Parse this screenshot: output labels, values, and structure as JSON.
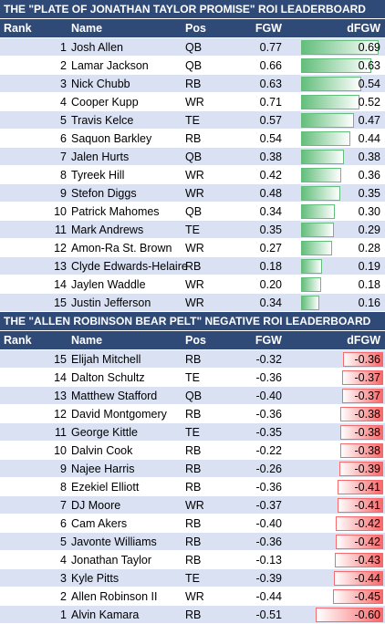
{
  "tables": [
    {
      "title": "THE \"PLATE OF JONATHAN TAYLOR PROMISE\" ROI LEADERBOARD",
      "headers": {
        "rank": "Rank",
        "name": "Name",
        "pos": "Pos",
        "fgw": "FGW",
        "dfgw": "dFGW"
      },
      "bar_color": "#63BE7B",
      "rows": [
        {
          "rank": "1",
          "name": "Josh Allen",
          "pos": "QB",
          "fgw": "0.77",
          "dfgw": "0.69",
          "dfgw_value": 0.69
        },
        {
          "rank": "2",
          "name": "Lamar Jackson",
          "pos": "QB",
          "fgw": "0.66",
          "dfgw": "0.63",
          "dfgw_value": 0.63
        },
        {
          "rank": "3",
          "name": "Nick Chubb",
          "pos": "RB",
          "fgw": "0.63",
          "dfgw": "0.54",
          "dfgw_value": 0.54
        },
        {
          "rank": "4",
          "name": "Cooper Kupp",
          "pos": "WR",
          "fgw": "0.71",
          "dfgw": "0.52",
          "dfgw_value": 0.52
        },
        {
          "rank": "5",
          "name": "Travis Kelce",
          "pos": "TE",
          "fgw": "0.57",
          "dfgw": "0.47",
          "dfgw_value": 0.47
        },
        {
          "rank": "6",
          "name": "Saquon Barkley",
          "pos": "RB",
          "fgw": "0.54",
          "dfgw": "0.44",
          "dfgw_value": 0.44
        },
        {
          "rank": "7",
          "name": "Jalen Hurts",
          "pos": "QB",
          "fgw": "0.38",
          "dfgw": "0.38",
          "dfgw_value": 0.38
        },
        {
          "rank": "8",
          "name": "Tyreek Hill",
          "pos": "WR",
          "fgw": "0.42",
          "dfgw": "0.36",
          "dfgw_value": 0.36
        },
        {
          "rank": "9",
          "name": "Stefon Diggs",
          "pos": "WR",
          "fgw": "0.48",
          "dfgw": "0.35",
          "dfgw_value": 0.35
        },
        {
          "rank": "10",
          "name": "Patrick Mahomes",
          "pos": "QB",
          "fgw": "0.34",
          "dfgw": "0.30",
          "dfgw_value": 0.3
        },
        {
          "rank": "11",
          "name": "Mark Andrews",
          "pos": "TE",
          "fgw": "0.35",
          "dfgw": "0.29",
          "dfgw_value": 0.29
        },
        {
          "rank": "12",
          "name": "Amon-Ra St. Brown",
          "pos": "WR",
          "fgw": "0.27",
          "dfgw": "0.28",
          "dfgw_value": 0.28
        },
        {
          "rank": "13",
          "name": "Clyde Edwards-Helaire",
          "pos": "RB",
          "fgw": "0.18",
          "dfgw": "0.19",
          "dfgw_value": 0.19
        },
        {
          "rank": "14",
          "name": "Jaylen Waddle",
          "pos": "WR",
          "fgw": "0.20",
          "dfgw": "0.18",
          "dfgw_value": 0.18
        },
        {
          "rank": "15",
          "name": "Justin Jefferson",
          "pos": "WR",
          "fgw": "0.34",
          "dfgw": "0.16",
          "dfgw_value": 0.16
        }
      ]
    },
    {
      "title": "THE \"ALLEN ROBINSON BEAR PELT\" NEGATIVE ROI LEADERBOARD",
      "headers": {
        "rank": "Rank",
        "name": "Name",
        "pos": "Pos",
        "fgw": "FGW",
        "dfgw": "dFGW"
      },
      "bar_color": "#F8696B",
      "rows": [
        {
          "rank": "15",
          "name": "Elijah Mitchell",
          "pos": "RB",
          "fgw": "-0.32",
          "dfgw": "-0.36",
          "dfgw_value": -0.36
        },
        {
          "rank": "14",
          "name": "Dalton Schultz",
          "pos": "TE",
          "fgw": "-0.36",
          "dfgw": "-0.37",
          "dfgw_value": -0.37
        },
        {
          "rank": "13",
          "name": "Matthew Stafford",
          "pos": "QB",
          "fgw": "-0.40",
          "dfgw": "-0.37",
          "dfgw_value": -0.37
        },
        {
          "rank": "12",
          "name": "David Montgomery",
          "pos": "RB",
          "fgw": "-0.36",
          "dfgw": "-0.38",
          "dfgw_value": -0.38
        },
        {
          "rank": "11",
          "name": "George Kittle",
          "pos": "TE",
          "fgw": "-0.35",
          "dfgw": "-0.38",
          "dfgw_value": -0.38
        },
        {
          "rank": "10",
          "name": "Dalvin Cook",
          "pos": "RB",
          "fgw": "-0.22",
          "dfgw": "-0.38",
          "dfgw_value": -0.38
        },
        {
          "rank": "9",
          "name": "Najee Harris",
          "pos": "RB",
          "fgw": "-0.26",
          "dfgw": "-0.39",
          "dfgw_value": -0.39
        },
        {
          "rank": "8",
          "name": "Ezekiel Elliott",
          "pos": "RB",
          "fgw": "-0.36",
          "dfgw": "-0.41",
          "dfgw_value": -0.41
        },
        {
          "rank": "7",
          "name": "DJ Moore",
          "pos": "WR",
          "fgw": "-0.37",
          "dfgw": "-0.41",
          "dfgw_value": -0.41
        },
        {
          "rank": "6",
          "name": "Cam Akers",
          "pos": "RB",
          "fgw": "-0.40",
          "dfgw": "-0.42",
          "dfgw_value": -0.42
        },
        {
          "rank": "5",
          "name": "Javonte Williams",
          "pos": "RB",
          "fgw": "-0.36",
          "dfgw": "-0.42",
          "dfgw_value": -0.42
        },
        {
          "rank": "4",
          "name": "Jonathan Taylor",
          "pos": "RB",
          "fgw": "-0.13",
          "dfgw": "-0.43",
          "dfgw_value": -0.43
        },
        {
          "rank": "3",
          "name": "Kyle Pitts",
          "pos": "TE",
          "fgw": "-0.39",
          "dfgw": "-0.44",
          "dfgw_value": -0.44
        },
        {
          "rank": "2",
          "name": "Allen Robinson II",
          "pos": "WR",
          "fgw": "-0.44",
          "dfgw": "-0.45",
          "dfgw_value": -0.45
        },
        {
          "rank": "1",
          "name": "Alvin Kamara",
          "pos": "RB",
          "fgw": "-0.51",
          "dfgw": "-0.60",
          "dfgw_value": -0.6
        }
      ]
    }
  ],
  "colors": {
    "header_bg": "#2F4A76",
    "band_bg": "#D9E1F2",
    "positive_bar": "#63BE7B",
    "negative_bar": "#F8696B"
  }
}
